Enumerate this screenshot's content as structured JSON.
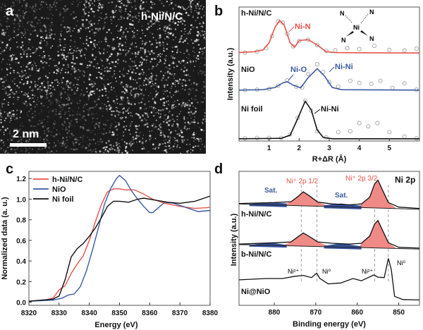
{
  "colors": {
    "red": "#e8524a",
    "blue": "#3a5aa0",
    "black": "#111111",
    "red_fill": "#f08a86",
    "blue_fill": "#34509a"
  },
  "panel_a": {
    "label": "a",
    "sample": "h-Ni/N/C",
    "scale_bar": "2 nm"
  },
  "chart_data": [
    {
      "panel": "b",
      "type": "line",
      "xlabel": "R+ΔR (Å)",
      "ylabel": "Intensity (a.u.)",
      "xlim": [
        0,
        6
      ],
      "ylim": [
        0,
        3
      ],
      "xticks": [
        "1",
        "2",
        "3",
        "4",
        "5"
      ],
      "inset": {
        "center": "Ni",
        "ligands": [
          "N",
          "N",
          "N",
          "N"
        ]
      },
      "series": [
        {
          "name": "h-Ni/N/C",
          "color": "#e8524a",
          "annotation": "Ni-N",
          "fit": [
            [
              0,
              1.98
            ],
            [
              0.5,
              2.0
            ],
            [
              0.8,
              2.04
            ],
            [
              1.0,
              2.2
            ],
            [
              1.2,
              2.55
            ],
            [
              1.35,
              2.7
            ],
            [
              1.5,
              2.6
            ],
            [
              1.7,
              2.2
            ],
            [
              1.85,
              2.1
            ],
            [
              2.0,
              2.25
            ],
            [
              2.3,
              2.27
            ],
            [
              2.6,
              2.15
            ],
            [
              2.9,
              2.0
            ],
            [
              3.2,
              1.98
            ],
            [
              6,
              1.97
            ]
          ],
          "data": [
            [
              0.2,
              1.98
            ],
            [
              0.6,
              2.0
            ],
            [
              0.9,
              2.08
            ],
            [
              1.1,
              2.35
            ],
            [
              1.3,
              2.68
            ],
            [
              1.45,
              2.65
            ],
            [
              1.6,
              2.4
            ],
            [
              1.8,
              2.12
            ],
            [
              2.0,
              2.24
            ],
            [
              2.3,
              2.27
            ],
            [
              2.6,
              2.15
            ],
            [
              2.9,
              2.02
            ],
            [
              3.2,
              2.03
            ],
            [
              3.6,
              2.08
            ],
            [
              4.0,
              2.06
            ],
            [
              4.5,
              2.13
            ],
            [
              5.0,
              2.04
            ],
            [
              5.5,
              2.03
            ],
            [
              5.9,
              2.07
            ]
          ]
        },
        {
          "name": "NiO",
          "color": "#3a5aa0",
          "annotations": [
            "Ni-O",
            "Ni-Ni"
          ],
          "fit": [
            [
              0,
              1.14
            ],
            [
              0.8,
              1.15
            ],
            [
              1.2,
              1.2
            ],
            [
              1.45,
              1.3
            ],
            [
              1.6,
              1.33
            ],
            [
              1.8,
              1.25
            ],
            [
              2.05,
              1.19
            ],
            [
              2.3,
              1.42
            ],
            [
              2.6,
              1.62
            ],
            [
              2.85,
              1.45
            ],
            [
              3.1,
              1.2
            ],
            [
              3.4,
              1.15
            ],
            [
              6,
              1.14
            ]
          ],
          "data": [
            [
              0.2,
              1.14
            ],
            [
              0.6,
              1.15
            ],
            [
              1.0,
              1.17
            ],
            [
              1.3,
              1.24
            ],
            [
              1.6,
              1.36
            ],
            [
              1.9,
              1.22
            ],
            [
              2.1,
              1.2
            ],
            [
              2.3,
              1.5
            ],
            [
              2.6,
              1.72
            ],
            [
              2.8,
              1.55
            ],
            [
              3.0,
              1.32
            ],
            [
              3.3,
              1.22
            ],
            [
              3.7,
              1.35
            ],
            [
              4.0,
              1.3
            ],
            [
              4.4,
              1.28
            ],
            [
              4.7,
              1.35
            ],
            [
              5.1,
              1.19
            ],
            [
              5.5,
              1.29
            ],
            [
              5.9,
              1.15
            ]
          ]
        },
        {
          "name": "Ni foil",
          "color": "#111111",
          "annotation": "Ni-Ni",
          "fit": [
            [
              0,
              0.05
            ],
            [
              1.4,
              0.06
            ],
            [
              1.7,
              0.13
            ],
            [
              1.95,
              0.5
            ],
            [
              2.2,
              0.89
            ],
            [
              2.4,
              0.7
            ],
            [
              2.6,
              0.25
            ],
            [
              2.8,
              0.08
            ],
            [
              3.1,
              0.05
            ],
            [
              6,
              0.05
            ]
          ],
          "data": [
            [
              0.2,
              0.06
            ],
            [
              0.6,
              0.07
            ],
            [
              1.0,
              0.07
            ],
            [
              1.4,
              0.07
            ],
            [
              1.7,
              0.15
            ],
            [
              1.95,
              0.52
            ],
            [
              2.2,
              0.9
            ],
            [
              2.4,
              0.68
            ],
            [
              2.6,
              0.22
            ],
            [
              2.9,
              0.08
            ],
            [
              3.3,
              0.2
            ],
            [
              3.7,
              0.22
            ],
            [
              4.0,
              0.4
            ],
            [
              4.3,
              0.33
            ],
            [
              4.6,
              0.4
            ],
            [
              5.0,
              0.2
            ],
            [
              5.5,
              0.1
            ],
            [
              5.9,
              0.06
            ]
          ]
        }
      ]
    },
    {
      "panel": "c",
      "type": "line",
      "xlabel": "Energy (eV)",
      "ylabel": "Normalized data (a. u.)",
      "xlim": [
        8320,
        8380
      ],
      "ylim": [
        -0.03,
        1.27
      ],
      "xticks": [
        8320,
        8330,
        8340,
        8350,
        8360,
        8370,
        8380
      ],
      "yticks": [
        "0.0",
        "0.2",
        "0.4",
        "0.6",
        "0.8",
        "1.0",
        "1.2"
      ],
      "legend": "top-left",
      "series": [
        {
          "name": "h-Ni/N/C",
          "color": "#e8524a",
          "points": [
            [
              8320,
              0.01
            ],
            [
              8325,
              0.02
            ],
            [
              8328,
              0.04
            ],
            [
              8330,
              0.12
            ],
            [
              8332,
              0.16
            ],
            [
              8334,
              0.28
            ],
            [
              8336,
              0.37
            ],
            [
              8338,
              0.45
            ],
            [
              8340,
              0.6
            ],
            [
              8342,
              0.78
            ],
            [
              8344,
              0.95
            ],
            [
              8346,
              1.07
            ],
            [
              8348,
              1.1
            ],
            [
              8350,
              1.1
            ],
            [
              8352,
              1.09
            ],
            [
              8355,
              1.09
            ],
            [
              8358,
              1.05
            ],
            [
              8361,
              1.0
            ],
            [
              8365,
              0.96
            ],
            [
              8370,
              0.93
            ],
            [
              8375,
              0.91
            ],
            [
              8380,
              0.92
            ]
          ]
        },
        {
          "name": "NiO",
          "color": "#3a5aa0",
          "points": [
            [
              8320,
              0.01
            ],
            [
              8328,
              0.02
            ],
            [
              8331,
              0.04
            ],
            [
              8333,
              0.07
            ],
            [
              8335,
              0.08
            ],
            [
              8337,
              0.15
            ],
            [
              8339,
              0.3
            ],
            [
              8341,
              0.5
            ],
            [
              8343,
              0.72
            ],
            [
              8345,
              0.95
            ],
            [
              8347,
              1.1
            ],
            [
              8349,
              1.2
            ],
            [
              8350,
              1.23
            ],
            [
              8352,
              1.18
            ],
            [
              8354,
              1.08
            ],
            [
              8356,
              1.0
            ],
            [
              8358,
              0.93
            ],
            [
              8360,
              0.87
            ],
            [
              8361,
              0.87
            ],
            [
              8363,
              0.92
            ],
            [
              8365,
              0.97
            ],
            [
              8368,
              0.96
            ],
            [
              8372,
              0.92
            ],
            [
              8376,
              0.88
            ],
            [
              8380,
              0.89
            ]
          ]
        },
        {
          "name": "Ni foil",
          "color": "#111111",
          "points": [
            [
              8320,
              0.01
            ],
            [
              8328,
              0.03
            ],
            [
              8330,
              0.06
            ],
            [
              8332,
              0.22
            ],
            [
              8334,
              0.44
            ],
            [
              8336,
              0.52
            ],
            [
              8338,
              0.57
            ],
            [
              8340,
              0.64
            ],
            [
              8342,
              0.72
            ],
            [
              8344,
              0.82
            ],
            [
              8346,
              0.93
            ],
            [
              8348,
              0.98
            ],
            [
              8350,
              0.98
            ],
            [
              8353,
              0.97
            ],
            [
              8356,
              1.0
            ],
            [
              8358,
              1.01
            ],
            [
              8362,
              0.99
            ],
            [
              8366,
              0.97
            ],
            [
              8370,
              0.96
            ],
            [
              8375,
              0.98
            ],
            [
              8380,
              1.03
            ]
          ]
        }
      ]
    },
    {
      "panel": "d",
      "type": "line",
      "title": "Ni 2p",
      "xlabel": "Binding energy (eV)",
      "ylabel": "Intensity (a.u.)",
      "xlim": [
        888.5,
        845
      ],
      "ylim": [
        0,
        3
      ],
      "xticks": [
        880,
        870,
        860,
        850
      ],
      "peak_labels": [
        "Ni⁺ 2p 1/2",
        "Ni⁺ 2p 3/2",
        "Sat.",
        "Sat."
      ],
      "ref_lines": [
        873.5,
        869.7,
        855.8,
        852.5
      ],
      "ref_labels": [
        {
          "x": 873.5,
          "text": "Ni²⁺"
        },
        {
          "x": 869.7,
          "text": "Ni⁰"
        },
        {
          "x": 855.8,
          "text": "Ni²⁺"
        },
        {
          "x": 852.5,
          "text": "Ni⁰"
        }
      ],
      "series": [
        {
          "name": "h-Ni/N/C",
          "baseline": [
            [
              888.5,
              2.27
            ],
            [
              845,
              2.15
            ]
          ],
          "points": [
            [
              888.5,
              2.28
            ],
            [
              880,
              2.3
            ],
            [
              876,
              2.32
            ],
            [
              874.5,
              2.42
            ],
            [
              873,
              2.54
            ],
            [
              871.5,
              2.45
            ],
            [
              869.5,
              2.31
            ],
            [
              866,
              2.27
            ],
            [
              862,
              2.25
            ],
            [
              859,
              2.27
            ],
            [
              857,
              2.42
            ],
            [
              855.8,
              2.72
            ],
            [
              855,
              2.8
            ],
            [
              854,
              2.6
            ],
            [
              852.5,
              2.3
            ],
            [
              850,
              2.2
            ],
            [
              845,
              2.17
            ]
          ],
          "sat": [
            [
              [
                886,
                2.27
              ],
              [
                881,
                2.31
              ],
              [
                877,
                2.28
              ]
            ],
            [
              [
                868,
                2.24
              ],
              [
                864,
                2.28
              ],
              [
                859,
                2.23
              ]
            ]
          ]
        },
        {
          "name": "b-Ni/N/C",
          "baseline": [
            [
              888.5,
              1.36
            ],
            [
              845,
              1.26
            ]
          ],
          "points": [
            [
              888.5,
              1.37
            ],
            [
              880,
              1.4
            ],
            [
              876,
              1.42
            ],
            [
              874.5,
              1.52
            ],
            [
              873,
              1.62
            ],
            [
              871.5,
              1.54
            ],
            [
              869.5,
              1.42
            ],
            [
              866,
              1.39
            ],
            [
              862,
              1.37
            ],
            [
              859,
              1.39
            ],
            [
              857,
              1.55
            ],
            [
              855.8,
              1.82
            ],
            [
              855,
              1.9
            ],
            [
              854,
              1.7
            ],
            [
              852.5,
              1.4
            ],
            [
              850,
              1.3
            ],
            [
              845,
              1.28
            ]
          ],
          "sat": [
            [
              [
                886,
                1.35
              ],
              [
                881,
                1.41
              ],
              [
                877,
                1.35
              ]
            ],
            [
              [
                868,
                1.33
              ],
              [
                864,
                1.39
              ],
              [
                859,
                1.32
              ]
            ]
          ]
        },
        {
          "name": "Ni@NiO",
          "points": [
            [
              888.5,
              0.57
            ],
            [
              882,
              0.6
            ],
            [
              878,
              0.6
            ],
            [
              875,
              0.65
            ],
            [
              873,
              0.67
            ],
            [
              871,
              0.62
            ],
            [
              869.8,
              0.72
            ],
            [
              869,
              0.6
            ],
            [
              867,
              0.48
            ],
            [
              864,
              0.5
            ],
            [
              861,
              0.6
            ],
            [
              859,
              0.55
            ],
            [
              856,
              0.68
            ],
            [
              855,
              0.63
            ],
            [
              853.5,
              0.62
            ],
            [
              852.5,
              1.05
            ],
            [
              851.8,
              0.8
            ],
            [
              851,
              0.2
            ],
            [
              849,
              0.13
            ],
            [
              845,
              0.12
            ]
          ]
        }
      ]
    }
  ]
}
